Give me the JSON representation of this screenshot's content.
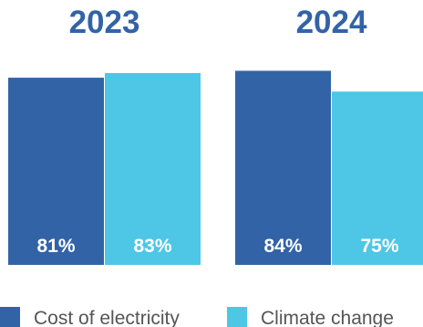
{
  "chart_data": {
    "type": "bar",
    "groups": [
      "2023",
      "2024"
    ],
    "series": [
      {
        "name": "Cost of electricity",
        "values": [
          81,
          84
        ],
        "labels": [
          "81%",
          "84%"
        ],
        "color": "#3363a7"
      },
      {
        "name": "Climate change",
        "values": [
          83,
          75
        ],
        "labels": [
          "83%",
          "75%"
        ],
        "color": "#4ec6e6"
      }
    ],
    "title_color": "#3363a7",
    "legend_position": "bottom",
    "grid": false,
    "axes_visible": false,
    "unit": "%"
  }
}
